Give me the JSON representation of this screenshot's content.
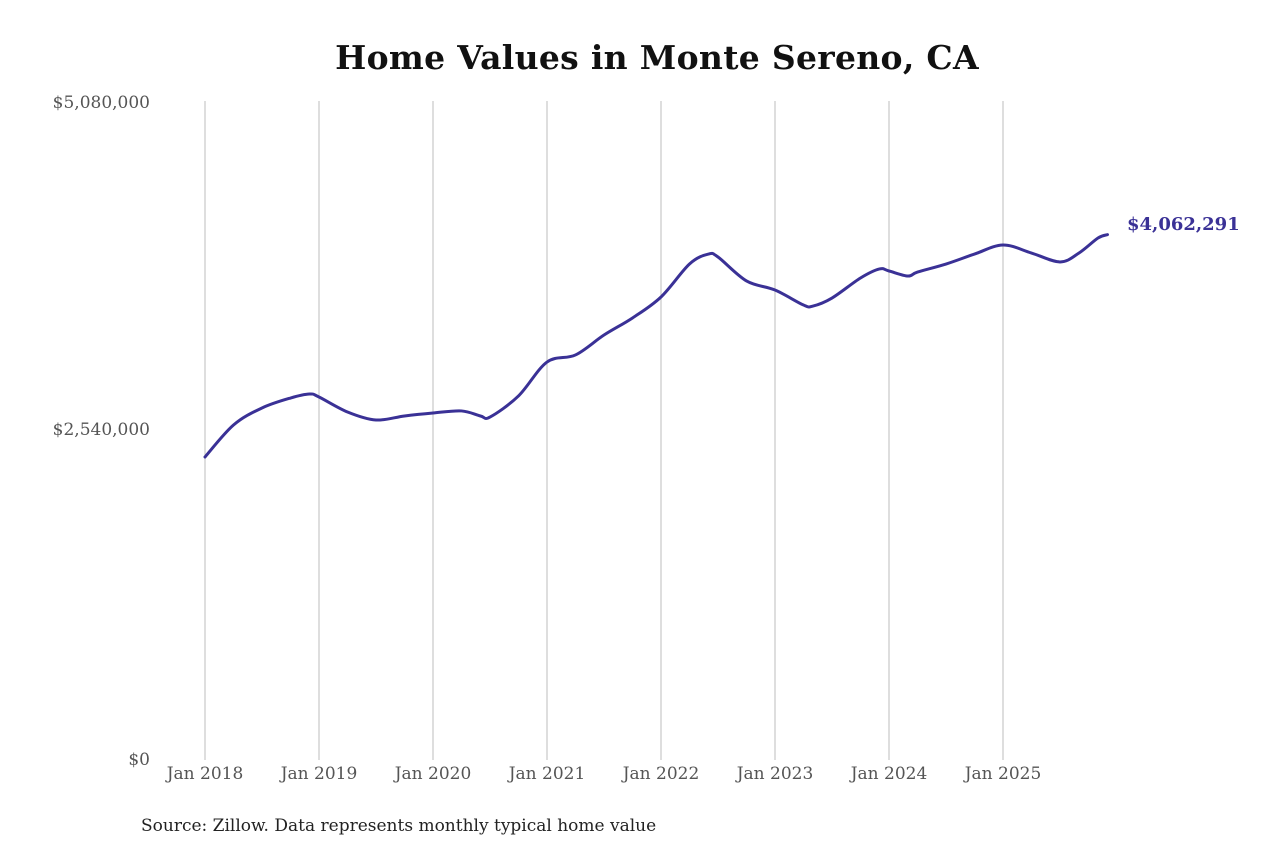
{
  "title": "Home Values in Monte Sereno, CA",
  "source_note": "Source: Zillow. Data represents monthly typical home value",
  "end_label": "$4,062,291",
  "colors": {
    "line": "#3a3196",
    "grid": "#bdbdbd",
    "text": "#555555"
  },
  "y_axis": {
    "ticks": [
      {
        "label": "$5,080,000",
        "value": 5080000
      },
      {
        "label": "$2,540,000",
        "value": 2540000
      },
      {
        "label": "$0",
        "value": 0
      }
    ]
  },
  "x_axis": {
    "ticks": [
      {
        "label": "Jan 2018",
        "value": "2018-01"
      },
      {
        "label": "Jan 2019",
        "value": "2019-01"
      },
      {
        "label": "Jan 2020",
        "value": "2020-01"
      },
      {
        "label": "Jan 2021",
        "value": "2021-01"
      },
      {
        "label": "Jan 2022",
        "value": "2022-01"
      },
      {
        "label": "Jan 2023",
        "value": "2023-01"
      },
      {
        "label": "Jan 2024",
        "value": "2024-01"
      },
      {
        "label": "Jan 2025",
        "value": "2025-01"
      }
    ]
  },
  "chart_data": {
    "type": "line",
    "title": "Home Values in Monte Sereno, CA",
    "xlabel": "",
    "ylabel": "",
    "ylim": [
      0,
      5080000
    ],
    "grid": "vertical gridlines at each January",
    "legend": "none; end-of-line value label",
    "end_annotation": "$4,062,291",
    "source": "Source: Zillow. Data represents monthly typical home value",
    "series": [
      {
        "name": "Typical home value",
        "x": [
          "2018-01",
          "2018-04",
          "2018-07",
          "2018-10",
          "2018-12",
          "2019-01",
          "2019-04",
          "2019-07",
          "2019-10",
          "2020-01",
          "2020-04",
          "2020-06",
          "2020-07",
          "2020-10",
          "2021-01",
          "2021-04",
          "2021-07",
          "2021-10",
          "2022-01",
          "2022-04",
          "2022-06",
          "2022-07",
          "2022-10",
          "2023-01",
          "2023-04",
          "2023-05",
          "2023-07",
          "2023-10",
          "2023-12",
          "2024-01",
          "2024-03",
          "2024-04",
          "2024-07",
          "2024-10",
          "2025-01",
          "2025-04",
          "2025-07",
          "2025-09",
          "2025-11",
          "2025-12"
        ],
        "values": [
          2343000,
          2590000,
          2722000,
          2799000,
          2830000,
          2807000,
          2691000,
          2629000,
          2660000,
          2683000,
          2699000,
          2660000,
          2652000,
          2815000,
          3077000,
          3132000,
          3286000,
          3418000,
          3580000,
          3835000,
          3912000,
          3889000,
          3704000,
          3634000,
          3518000,
          3510000,
          3572000,
          3727000,
          3797000,
          3781000,
          3742000,
          3773000,
          3835000,
          3912000,
          3982000,
          3920000,
          3851000,
          3920000,
          4036000,
          4062291
        ]
      }
    ]
  }
}
